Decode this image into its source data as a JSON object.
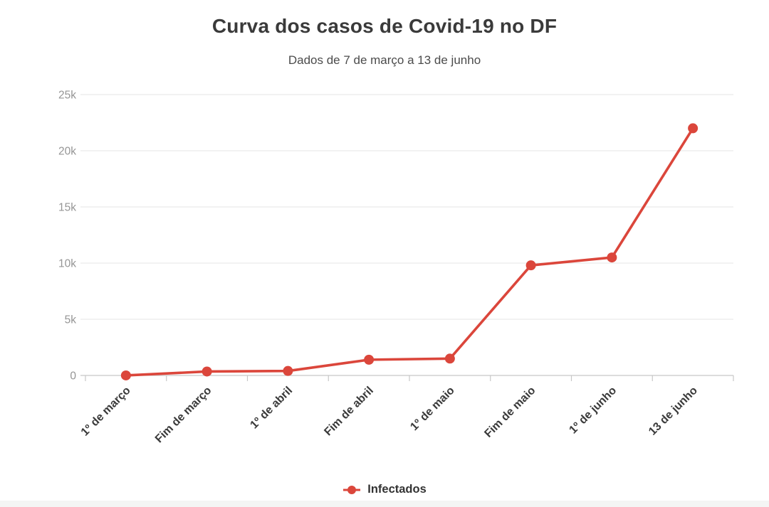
{
  "chart_data": {
    "type": "line",
    "title": "Curva dos casos de Covid-19 no DF",
    "subtitle": "Dados de 7 de março a 13 de junho",
    "categories": [
      "1º de março",
      "Fim de março",
      "1º de abril",
      "Fim de abril",
      "1º de maio",
      "Fim de maio",
      "1º de junho",
      "13 de junho"
    ],
    "series": [
      {
        "name": "Infectados",
        "color": "#db463b",
        "marker": "line-dot",
        "values": [
          1,
          350,
          400,
          1400,
          1500,
          9800,
          10500,
          22000
        ]
      }
    ],
    "ylim": [
      0,
      25000
    ],
    "yticks": [
      {
        "v": 0,
        "label": "0"
      },
      {
        "v": 5000,
        "label": "5k"
      },
      {
        "v": 10000,
        "label": "10k"
      },
      {
        "v": 15000,
        "label": "15k"
      },
      {
        "v": 20000,
        "label": "20k"
      },
      {
        "v": 25000,
        "label": "25k"
      }
    ],
    "grid": "horizontal",
    "legend_position": "bottom",
    "x_label_rotation": -45,
    "axis_color": "#c7c7c7",
    "grid_color": "#e9e9e9"
  }
}
